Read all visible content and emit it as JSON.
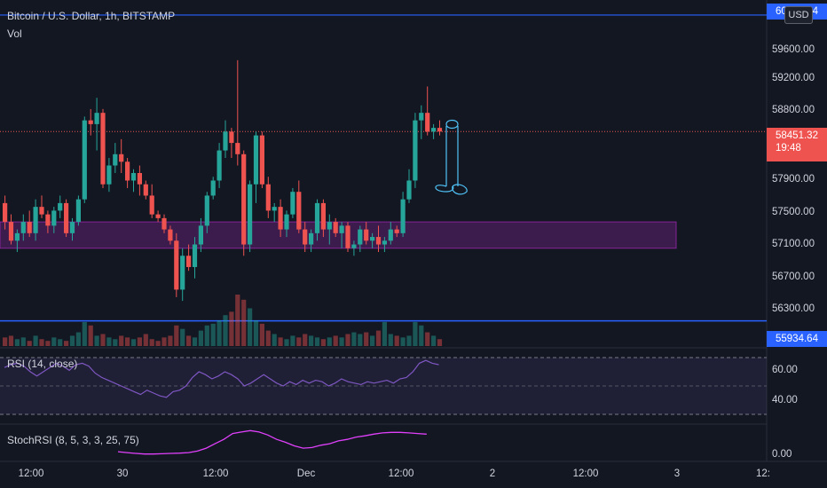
{
  "header": {
    "symbol_line": "Bitcoin / U.S. Dollar, 1h, BITSTAMP",
    "vol_label": "Vol",
    "currency_button": "USD"
  },
  "price_axis": {
    "ticks": [
      "59600.00",
      "59200.00",
      "58800.00",
      "57900.00",
      "57500.00",
      "57100.00",
      "56700.00",
      "56300.00"
    ],
    "top_label": "60000.14",
    "current_price": "58451.32",
    "countdown": "19:48",
    "line_label": "55934.64"
  },
  "rsi": {
    "label": "RSI (14, close)",
    "ticks": [
      "60.00",
      "40.00"
    ]
  },
  "stoch": {
    "label": "StochRSI (8, 5, 3, 3, 25, 75)",
    "ticks": [
      "0.00"
    ]
  },
  "time_axis": [
    "12:00",
    "30",
    "12:00",
    "Dec",
    "12:00",
    "2",
    "12:00",
    "3",
    "12:"
  ],
  "colors": {
    "bg": "#131722",
    "up": "#26a69a",
    "down": "#ef5350",
    "zone": "#9c27b0",
    "line": "#2962ff",
    "rsi": "#7e57c2",
    "stoch": "#e040fb",
    "drawing": "#4fc3f7"
  },
  "chart_data": {
    "type": "candlestick",
    "title": "Bitcoin / U.S. Dollar, 1h, BITSTAMP",
    "ylim": [
      55600,
      60200
    ],
    "zone": [
      56900,
      57250
    ],
    "horizontal_lines": [
      60000.14,
      55934.64
    ],
    "current_price": 58451.32,
    "candles": [
      [
        57500,
        57600,
        57150,
        57250
      ],
      [
        57250,
        57350,
        56950,
        57000
      ],
      [
        57000,
        57150,
        56850,
        57100
      ],
      [
        57100,
        57350,
        57000,
        57250
      ],
      [
        57250,
        57400,
        57050,
        57100
      ],
      [
        57100,
        57550,
        57000,
        57450
      ],
      [
        57450,
        57600,
        57300,
        57350
      ],
      [
        57350,
        57400,
        57100,
        57200
      ],
      [
        57200,
        57450,
        57100,
        57400
      ],
      [
        57400,
        57600,
        57300,
        57500
      ],
      [
        57500,
        57550,
        57050,
        57100
      ],
      [
        57100,
        57300,
        57000,
        57250
      ],
      [
        57250,
        57600,
        57200,
        57550
      ],
      [
        57550,
        58650,
        57500,
        58600
      ],
      [
        58600,
        58750,
        58400,
        58550
      ],
      [
        58550,
        58900,
        58200,
        58700
      ],
      [
        58700,
        58750,
        57700,
        57750
      ],
      [
        57750,
        58100,
        57650,
        58000
      ],
      [
        58000,
        58300,
        57900,
        58150
      ],
      [
        58150,
        58350,
        57900,
        58050
      ],
      [
        58050,
        58100,
        57700,
        57800
      ],
      [
        57800,
        57950,
        57650,
        57900
      ],
      [
        57900,
        58000,
        57600,
        57750
      ],
      [
        57750,
        57800,
        57550,
        57600
      ],
      [
        57600,
        57750,
        57300,
        57350
      ],
      [
        57350,
        57400,
        57250,
        57300
      ],
      [
        57300,
        57350,
        57100,
        57150
      ],
      [
        57150,
        57200,
        56950,
        57000
      ],
      [
        57000,
        57100,
        56250,
        56350
      ],
      [
        56350,
        56900,
        56200,
        56800
      ],
      [
        56800,
        56950,
        56600,
        56650
      ],
      [
        56650,
        57050,
        56500,
        56950
      ],
      [
        56950,
        57300,
        56850,
        57200
      ],
      [
        57200,
        57650,
        57100,
        57600
      ],
      [
        57600,
        57850,
        57550,
        57800
      ],
      [
        57800,
        58300,
        57700,
        58200
      ],
      [
        58200,
        58600,
        58100,
        58450
      ],
      [
        58450,
        58500,
        58100,
        58300
      ],
      [
        58300,
        59400,
        58000,
        58150
      ],
      [
        58150,
        58200,
        56800,
        56950
      ],
      [
        56950,
        57800,
        56850,
        57750
      ],
      [
        57750,
        58450,
        57500,
        58400
      ],
      [
        58400,
        58450,
        57700,
        57750
      ],
      [
        57750,
        57850,
        57300,
        57400
      ],
      [
        57400,
        57500,
        57250,
        57450
      ],
      [
        57450,
        57550,
        57050,
        57150
      ],
      [
        57150,
        57400,
        57050,
        57350
      ],
      [
        57350,
        57700,
        57300,
        57650
      ],
      [
        57650,
        57800,
        57100,
        57150
      ],
      [
        57150,
        57250,
        56850,
        56950
      ],
      [
        56950,
        57150,
        56850,
        57100
      ],
      [
        57100,
        57550,
        57000,
        57500
      ],
      [
        57500,
        57550,
        57050,
        57150
      ],
      [
        57150,
        57350,
        56950,
        57250
      ],
      [
        57250,
        57300,
        57050,
        57100
      ],
      [
        57100,
        57250,
        56900,
        57200
      ],
      [
        57200,
        57250,
        56850,
        56900
      ],
      [
        56900,
        57000,
        56800,
        56950
      ],
      [
        56950,
        57200,
        56850,
        57150
      ],
      [
        57150,
        57250,
        56950,
        57000
      ],
      [
        57000,
        57100,
        56900,
        57050
      ],
      [
        57050,
        57200,
        56850,
        56950
      ],
      [
        56950,
        57050,
        56850,
        57000
      ],
      [
        57000,
        57250,
        56950,
        57150
      ],
      [
        57150,
        57200,
        57050,
        57100
      ],
      [
        57100,
        57650,
        57050,
        57550
      ],
      [
        57550,
        57950,
        57500,
        57800
      ],
      [
        57800,
        58700,
        57700,
        58600
      ],
      [
        58600,
        58800,
        58350,
        58700
      ],
      [
        58700,
        59050,
        58400,
        58450
      ],
      [
        58450,
        58550,
        58350,
        58500
      ],
      [
        58500,
        58600,
        58400,
        58451
      ]
    ],
    "volume": [
      5,
      6,
      4,
      5,
      3,
      6,
      4,
      3,
      5,
      4,
      3,
      6,
      8,
      14,
      12,
      6,
      7,
      5,
      4,
      6,
      5,
      4,
      5,
      7,
      4,
      3,
      5,
      6,
      12,
      10,
      6,
      5,
      9,
      12,
      13,
      15,
      18,
      20,
      30,
      27,
      22,
      15,
      13,
      9,
      7,
      5,
      4,
      6,
      5,
      7,
      6,
      5,
      4,
      5,
      6,
      5,
      7,
      8,
      7,
      8,
      6,
      9,
      14,
      7,
      6,
      5,
      6,
      14,
      12,
      8,
      6,
      4
    ],
    "rsi": [
      63,
      65,
      66,
      64,
      60,
      57,
      60,
      63,
      66,
      64,
      61,
      65,
      66,
      64,
      59,
      56,
      54,
      52,
      50,
      48,
      46,
      44,
      47,
      45,
      43,
      42,
      46,
      47,
      50,
      56,
      60,
      58,
      55,
      57,
      60,
      58,
      55,
      50,
      52,
      55,
      58,
      55,
      52,
      50,
      53,
      51,
      54,
      52,
      54,
      53,
      50,
      52,
      55,
      53,
      52,
      51,
      53,
      52,
      53,
      54,
      52,
      55,
      56,
      60,
      66,
      68,
      66,
      65
    ],
    "rsi_ylim": [
      25,
      75
    ],
    "stochrsi": [
      18,
      15,
      12,
      10,
      10,
      11,
      12,
      13,
      15,
      20,
      30,
      45,
      60,
      80,
      85,
      90,
      85,
      75,
      60,
      50,
      38,
      30,
      32,
      40,
      45,
      55,
      60,
      68,
      72,
      78,
      82,
      84,
      84,
      82,
      80,
      78
    ]
  }
}
